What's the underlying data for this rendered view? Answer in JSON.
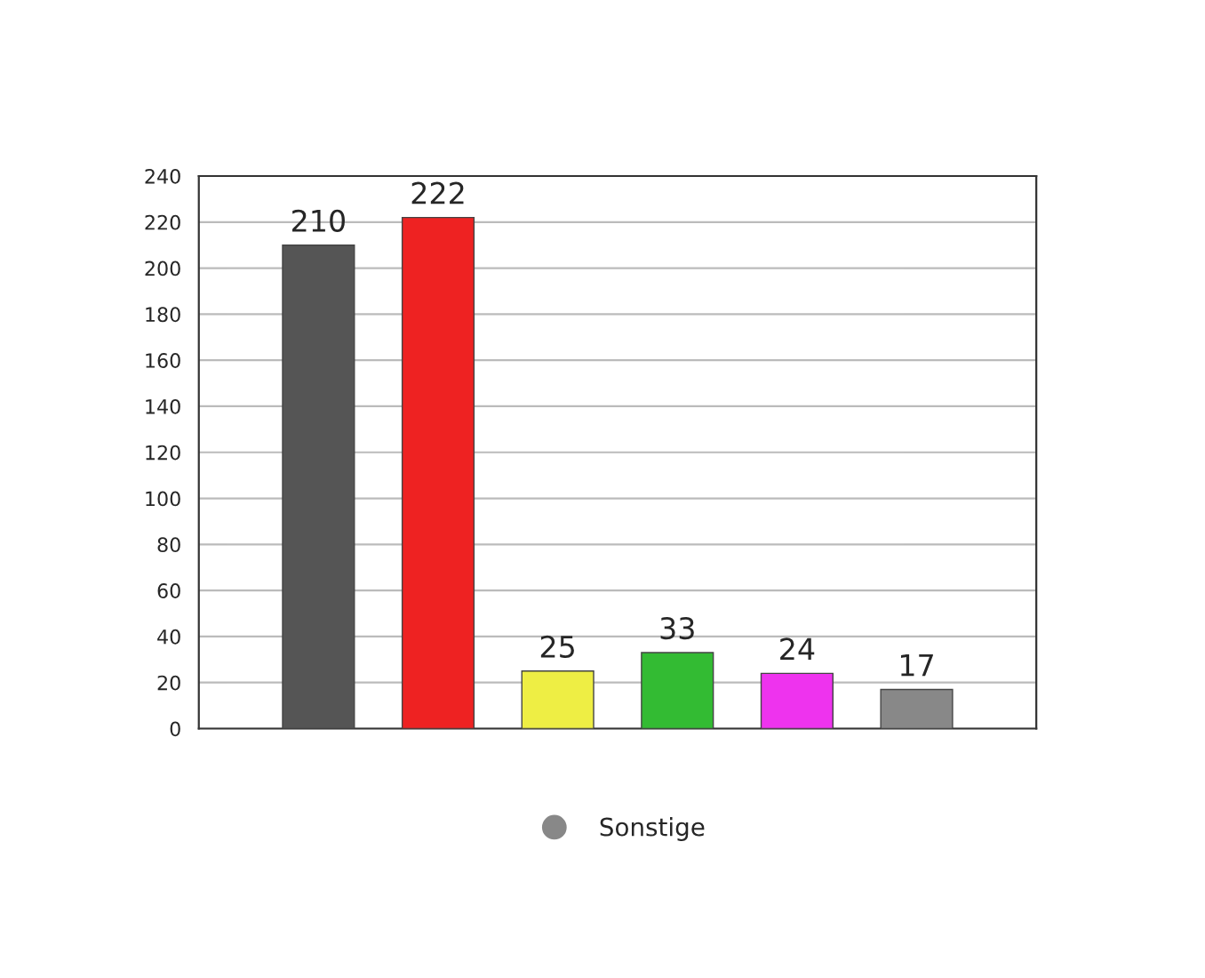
{
  "chart_data": {
    "type": "bar",
    "categories": [
      null,
      null,
      null,
      null,
      null,
      null
    ],
    "series": [
      {
        "color": "#555555",
        "values": [
          210,
          null,
          null,
          null,
          null,
          null
        ]
      },
      {
        "color": "#ee2222",
        "values": [
          null,
          222,
          null,
          null,
          null,
          null
        ]
      },
      {
        "color": "#eeee44",
        "values": [
          null,
          null,
          25,
          null,
          null,
          null
        ]
      },
      {
        "color": "#33bb33",
        "values": [
          null,
          null,
          null,
          33,
          null,
          null
        ]
      },
      {
        "color": "#ee33ee",
        "values": [
          null,
          null,
          null,
          null,
          24,
          null
        ]
      },
      {
        "name": "Sonstige",
        "color": "#888888",
        "values": [
          null,
          null,
          null,
          null,
          null,
          17
        ]
      }
    ],
    "ylim": [
      0,
      240
    ],
    "yticks": [
      0,
      20,
      40,
      60,
      80,
      100,
      120,
      140,
      160,
      180,
      200,
      220,
      240
    ],
    "grid": "y",
    "data_labels": true,
    "legend": "bottom"
  }
}
